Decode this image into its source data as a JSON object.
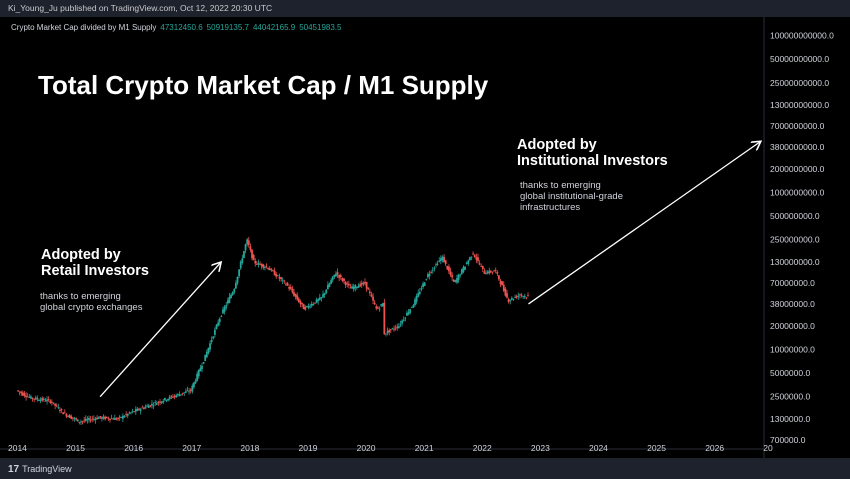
{
  "header": {
    "attribution": "Ki_Young_Ju published on TradingView.com, Oct 12, 2022 20:30 UTC"
  },
  "legend": {
    "name": "Crypto Market Cap divided by M1 Supply",
    "values": [
      "47312450.6",
      "50919135.7",
      "44042165.9",
      "50451983.5"
    ]
  },
  "annotations": {
    "title": "Total Crypto Market Cap / M1 Supply",
    "retail_heading_1": "Adopted by",
    "retail_heading_2": "Retail Investors",
    "retail_sub_1": "thanks to emerging",
    "retail_sub_2": "global crypto exchanges",
    "inst_heading_1": "Adopted by",
    "inst_heading_2": "Institutional Investors",
    "inst_sub_1": "thanks to emerging",
    "inst_sub_2": "global institutional-grade",
    "inst_sub_3": "infrastructures"
  },
  "footer": {
    "brand_mark": "17",
    "brand_name": "TradingView"
  },
  "colors": {
    "up": "#26a69a",
    "down": "#ef5350",
    "background": "#000000",
    "axis_text": "#d1d4dc"
  },
  "chart_data": {
    "type": "candlestick",
    "y_scale": "log",
    "ylim": [
      700000,
      200000000000
    ],
    "xlim": [
      "2014-01-01",
      "2027-01-01"
    ],
    "x_ticks": [
      "2014",
      "2015",
      "2016",
      "2017",
      "2018",
      "2019",
      "2020",
      "2021",
      "2022",
      "2023",
      "2024",
      "2025",
      "2026",
      "20"
    ],
    "y_ticks": [
      "200000000000.0",
      "100000000000.0",
      "50000000000.0",
      "25000000000.0",
      "13000000000.0",
      "7000000000.0",
      "3800000000.0",
      "2000000000.0",
      "1000000000.0",
      "500000000.0",
      "250000000.0",
      "130000000.0",
      "70000000.0",
      "38000000.0",
      "20000000.0",
      "10000000.0",
      "5000000.0",
      "2500000.0",
      "1300000.0",
      "700000.0"
    ],
    "y_tick_values": [
      200000000000,
      100000000000,
      50000000000,
      25000000000,
      13000000000,
      7000000000,
      3800000000,
      2000000000,
      1000000000,
      500000000,
      250000000,
      130000000,
      70000000,
      38000000,
      20000000,
      10000000,
      5000000,
      2500000,
      1300000,
      700000
    ],
    "series": [
      {
        "name": "Crypto Market Cap divided by M1 Supply",
        "points": [
          [
            "2014-01-01",
            3000000
          ],
          [
            "2014-04-01",
            2400000
          ],
          [
            "2014-08-01",
            2200000
          ],
          [
            "2014-11-01",
            1500000
          ],
          [
            "2015-02-01",
            1200000
          ],
          [
            "2015-06-01",
            1350000
          ],
          [
            "2015-10-01",
            1300000
          ],
          [
            "2016-01-01",
            1600000
          ],
          [
            "2016-06-01",
            2100000
          ],
          [
            "2016-10-01",
            2600000
          ],
          [
            "2017-01-01",
            3000000
          ],
          [
            "2017-04-01",
            8000000
          ],
          [
            "2017-07-01",
            25000000
          ],
          [
            "2017-10-01",
            60000000
          ],
          [
            "2017-12-20",
            250000000
          ],
          [
            "2018-02-01",
            130000000
          ],
          [
            "2018-05-01",
            110000000
          ],
          [
            "2018-09-01",
            65000000
          ],
          [
            "2018-12-15",
            33000000
          ],
          [
            "2019-04-01",
            45000000
          ],
          [
            "2019-07-01",
            95000000
          ],
          [
            "2019-10-01",
            60000000
          ],
          [
            "2020-01-01",
            70000000
          ],
          [
            "2020-03-15",
            32000000
          ],
          [
            "2020-05-01",
            40000000
          ],
          [
            "2020-05-02",
            16000000
          ],
          [
            "2020-08-01",
            20000000
          ],
          [
            "2020-11-01",
            38000000
          ],
          [
            "2021-02-01",
            90000000
          ],
          [
            "2021-05-01",
            150000000
          ],
          [
            "2021-07-15",
            70000000
          ],
          [
            "2021-11-10",
            170000000
          ],
          [
            "2022-01-20",
            95000000
          ],
          [
            "2022-04-01",
            100000000
          ],
          [
            "2022-06-20",
            42000000
          ],
          [
            "2022-09-01",
            50000000
          ],
          [
            "2022-10-12",
            47000000
          ]
        ]
      }
    ],
    "arrows": [
      {
        "from": [
          "2015-06-01",
          2500000
        ],
        "to": [
          "2017-07-01",
          130000000
        ]
      },
      {
        "from": [
          "2022-10-15",
          38000000
        ],
        "to": [
          "2026-10-15",
          4500000000
        ]
      }
    ]
  }
}
